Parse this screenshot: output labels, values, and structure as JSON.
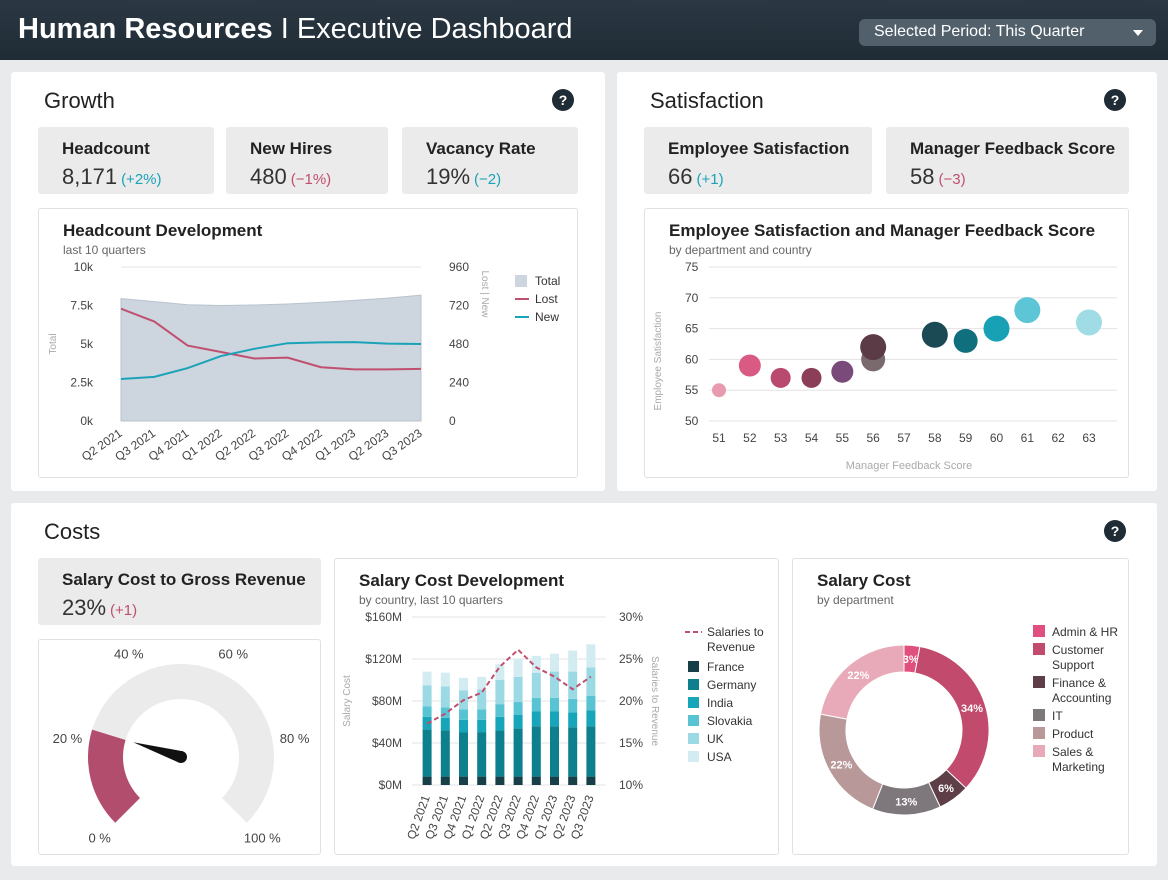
{
  "header": {
    "title_bold": "Human Resources",
    "title_sep": " I ",
    "title_rest": "Executive Dashboard",
    "period_label": "Selected Period: This Quarter"
  },
  "help_glyph": "?",
  "growth": {
    "title": "Growth",
    "kpis": [
      {
        "label": "Headcount",
        "value": "8,171",
        "change": "(+2%)",
        "trend": "positive"
      },
      {
        "label": "New Hires",
        "value": "480",
        "change": "(−1%)",
        "trend": "negative"
      },
      {
        "label": "Vacancy Rate",
        "value": "19%",
        "change": "(−2)",
        "trend": "positive"
      }
    ]
  },
  "satisfaction": {
    "title": "Satisfaction",
    "kpis": [
      {
        "label": "Employee Satisfaction",
        "value": "66",
        "change": "(+1)",
        "trend": "positive"
      },
      {
        "label": "Manager Feedback Score",
        "value": "58",
        "change": "(−3)",
        "trend": "negative"
      }
    ]
  },
  "costs": {
    "title": "Costs",
    "kpi": {
      "label": "Salary Cost to Gross Revenue",
      "value": "23%",
      "change": "(+1)",
      "trend": "negative"
    }
  },
  "colors": {
    "teal": "#1aa3b8",
    "rose": "#c0506f",
    "area": "#cdd5de"
  },
  "chart_data": [
    {
      "id": "headcount",
      "type": "area",
      "title": "Headcount Development",
      "subtitle": "last 10 quarters",
      "categories": [
        "Q2 2021",
        "Q3 2021",
        "Q4 2021",
        "Q1 2022",
        "Q2 2022",
        "Q3 2022",
        "Q4 2022",
        "Q1 2023",
        "Q2 2023",
        "Q3 2023"
      ],
      "ylabel": "Total",
      "ylabel_right": "Lost | New",
      "ylim": [
        0,
        10000
      ],
      "ylim_right": [
        0,
        960
      ],
      "yticks": [
        "0k",
        "2.5k",
        "5k",
        "7.5k",
        "10k"
      ],
      "yticks_right": [
        "0",
        "240",
        "480",
        "720",
        "960"
      ],
      "series": [
        {
          "name": "Total",
          "axis": "left",
          "type": "area",
          "color": "#cdd5de",
          "values": [
            7950,
            7750,
            7550,
            7500,
            7530,
            7600,
            7700,
            7830,
            7980,
            8171
          ]
        },
        {
          "name": "Lost",
          "axis": "right",
          "type": "line",
          "color": "#c0506f",
          "values": [
            700,
            620,
            470,
            430,
            390,
            395,
            335,
            322,
            322,
            325
          ]
        },
        {
          "name": "New",
          "axis": "right",
          "type": "line",
          "color": "#1aa3b8",
          "values": [
            262,
            275,
            330,
            405,
            450,
            485,
            490,
            492,
            482,
            480
          ]
        }
      ],
      "legend": "right"
    },
    {
      "id": "satisfaction_scatter",
      "type": "scatter",
      "title": "Employee Satisfaction and Manager Feedback Score",
      "subtitle": "by department and country",
      "xlabel": "Manager Feedback Score",
      "ylabel": "Employee Satisfaction",
      "xlim": [
        51,
        63
      ],
      "ylim": [
        50,
        75
      ],
      "xticks": [
        "51",
        "52",
        "53",
        "54",
        "55",
        "56",
        "57",
        "58",
        "59",
        "60",
        "61",
        "62",
        "63"
      ],
      "yticks": [
        "50",
        "55",
        "60",
        "65",
        "70",
        "75"
      ],
      "points": [
        {
          "x": 51,
          "y": 55,
          "size": 7,
          "color": "#e89aae"
        },
        {
          "x": 52,
          "y": 59,
          "size": 11,
          "color": "#d95b83"
        },
        {
          "x": 53,
          "y": 57,
          "size": 10,
          "color": "#b74a6e"
        },
        {
          "x": 54,
          "y": 57,
          "size": 10,
          "color": "#8c3d58"
        },
        {
          "x": 55,
          "y": 58,
          "size": 11,
          "color": "#7a4b7a"
        },
        {
          "x": 56,
          "y": 60,
          "size": 12,
          "color": "#7a6a6e"
        },
        {
          "x": 56,
          "y": 62,
          "size": 13,
          "color": "#5b3b45"
        },
        {
          "x": 58,
          "y": 64,
          "size": 13,
          "color": "#1b4a55"
        },
        {
          "x": 59,
          "y": 63,
          "size": 12,
          "color": "#0f6f7c"
        },
        {
          "x": 60,
          "y": 65,
          "size": 13,
          "color": "#18a0b4"
        },
        {
          "x": 61,
          "y": 68,
          "size": 13,
          "color": "#5cc6d6"
        },
        {
          "x": 63,
          "y": 66,
          "size": 13,
          "color": "#9fdce6"
        }
      ]
    },
    {
      "id": "gauge",
      "type": "gauge",
      "value": 23,
      "min": 0,
      "max": 100,
      "tick_labels": [
        "0 %",
        "20 %",
        "40 %",
        "60 %",
        "80 %",
        "100 %"
      ],
      "fill_color": "#b34d6d"
    },
    {
      "id": "salary_cost",
      "type": "bar",
      "stacked": true,
      "title": "Salary Cost Development",
      "subtitle": "by country, last 10 quarters",
      "categories": [
        "Q2 2021",
        "Q3 2021",
        "Q4 2021",
        "Q1 2022",
        "Q2 2022",
        "Q3 2022",
        "Q4 2022",
        "Q1 2023",
        "Q2 2023",
        "Q3 2023"
      ],
      "ylabel": "Salary Cost",
      "ylabel_right": "Salaries to Revenue",
      "ylim": [
        0,
        160
      ],
      "ylim_right": [
        10,
        30
      ],
      "yticks": [
        "$0M",
        "$40M",
        "$80M",
        "$120M",
        "$160M"
      ],
      "yticks_right": [
        "10%",
        "15%",
        "20%",
        "25%",
        "30%"
      ],
      "series": [
        {
          "name": "France",
          "color": "#173f48",
          "values": [
            8,
            8,
            8,
            8,
            8,
            8,
            8,
            8,
            8,
            8
          ]
        },
        {
          "name": "Germany",
          "color": "#0e7f8c",
          "values": [
            45,
            44,
            42,
            42,
            44,
            46,
            48,
            48,
            47,
            48
          ]
        },
        {
          "name": "India",
          "color": "#16a5b9",
          "values": [
            12,
            12,
            12,
            12,
            13,
            13,
            14,
            14,
            14,
            15
          ]
        },
        {
          "name": "Slovakia",
          "color": "#58c3d3",
          "values": [
            10,
            10,
            10,
            10,
            12,
            12,
            13,
            13,
            13,
            14
          ]
        },
        {
          "name": "UK",
          "color": "#9bd9e4",
          "values": [
            20,
            20,
            18,
            19,
            23,
            24,
            24,
            25,
            26,
            27
          ]
        },
        {
          "name": "USA",
          "color": "#d2ecf1",
          "values": [
            13,
            13,
            12,
            12,
            15,
            17,
            16,
            17,
            20,
            22
          ]
        }
      ],
      "line": {
        "name": "Salaries to Revenue",
        "color": "#c0506f",
        "values": [
          17.3,
          18.5,
          20.1,
          21.0,
          24.1,
          26.1,
          24.0,
          22.9,
          21.4,
          22.9
        ]
      },
      "legend": "right"
    },
    {
      "id": "salary_dept",
      "type": "pie",
      "title": "Salary Cost",
      "subtitle": "by department",
      "slices": [
        {
          "name": "Admin & HR",
          "value": 3,
          "label": "3%",
          "color": "#e0507e"
        },
        {
          "name": "Customer Support",
          "value": 34,
          "label": "34%",
          "color": "#c14a6d"
        },
        {
          "name": "Finance & Accounting",
          "value": 6,
          "label": "6%",
          "color": "#5e3f48"
        },
        {
          "name": "IT",
          "value": 13,
          "label": "13%",
          "color": "#7e787c"
        },
        {
          "name": "Product",
          "value": 22,
          "label": "22%",
          "color": "#b89898"
        },
        {
          "name": "Sales & Marketing",
          "value": 22,
          "label": "22%",
          "color": "#e8aab8"
        }
      ]
    }
  ]
}
